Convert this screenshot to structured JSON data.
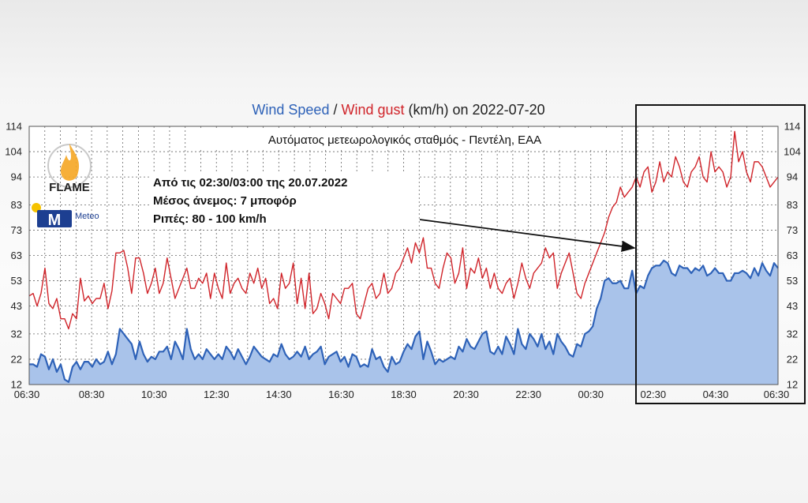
{
  "chart_data": {
    "type": "area",
    "title_parts": [
      {
        "text": "Wind Speed",
        "color": "#2e62b8"
      },
      {
        "text": " / ",
        "color": "#222222"
      },
      {
        "text": "Wind gust",
        "color": "#d0242a"
      },
      {
        "text": " (km/h) on 2022-07-20",
        "color": "#222222"
      }
    ],
    "subtitle": "Αυτόματος μετεωρολογικός σταθμός - Πεντέλη, ΕΑΑ",
    "x_ticks": [
      "06:30",
      "08:30",
      "10:30",
      "12:30",
      "14:30",
      "16:30",
      "18:30",
      "20:30",
      "22:30",
      "00:30",
      "02:30",
      "04:30",
      "06:30"
    ],
    "y_ticks": [
      12,
      22,
      32,
      43,
      53,
      63,
      73,
      83,
      94,
      104,
      114
    ],
    "ylim": [
      12,
      114
    ],
    "grid": true,
    "series": [
      {
        "style": "area",
        "color": "#2e62b8",
        "fill": "#a9c3ea",
        "values": [
          20,
          20,
          19,
          24,
          23,
          18,
          22,
          17,
          20,
          14,
          13,
          19,
          21,
          18,
          21,
          21,
          19,
          22,
          20,
          21,
          25,
          20,
          24,
          34,
          32,
          30,
          28,
          22,
          29,
          24,
          21,
          23,
          22,
          25,
          25,
          27,
          22,
          29,
          26,
          22,
          34,
          26,
          22,
          24,
          22,
          26,
          24,
          22,
          24,
          22,
          27,
          25,
          22,
          26,
          23,
          20,
          23,
          27,
          25,
          23,
          22,
          21,
          24,
          23,
          28,
          24,
          22,
          23,
          25,
          23,
          27,
          22,
          24,
          25,
          27,
          20,
          23,
          24,
          25,
          21,
          23,
          19,
          24,
          23,
          19,
          20,
          19,
          26,
          22,
          23,
          19,
          17,
          23,
          20,
          21,
          25,
          28,
          26,
          31,
          33,
          22,
          29,
          25,
          20,
          22,
          21,
          22,
          23,
          22,
          27,
          25,
          30,
          27,
          26,
          29,
          32,
          33,
          25,
          24,
          27,
          24,
          31,
          28,
          24,
          34,
          28,
          26,
          32,
          30,
          27,
          32,
          26,
          29,
          24,
          32,
          29,
          27,
          24,
          23,
          28,
          27,
          32,
          33,
          35,
          42,
          46,
          53,
          54,
          52,
          52,
          53,
          50,
          50,
          57,
          48,
          51,
          50,
          55,
          58,
          59,
          59,
          61,
          60,
          56,
          55,
          59,
          58,
          58,
          56,
          58,
          57,
          59,
          55,
          56,
          58,
          56,
          56,
          53,
          53,
          56,
          56,
          57,
          56,
          54,
          58,
          55,
          60,
          57,
          55,
          60,
          58
        ]
      },
      {
        "style": "line",
        "color": "#d0242a",
        "values": [
          47,
          48,
          43,
          48,
          58,
          44,
          42,
          46,
          38,
          38,
          34,
          40,
          38,
          54,
          45,
          47,
          44,
          46,
          46,
          52,
          42,
          49,
          64,
          64,
          65,
          58,
          48,
          62,
          62,
          56,
          48,
          52,
          58,
          48,
          52,
          62,
          54,
          46,
          50,
          54,
          58,
          50,
          50,
          54,
          52,
          56,
          46,
          56,
          50,
          46,
          60,
          48,
          52,
          54,
          50,
          48,
          56,
          52,
          58,
          50,
          54,
          44,
          46,
          42,
          56,
          50,
          52,
          60,
          44,
          54,
          42,
          56,
          40,
          42,
          48,
          44,
          38,
          48,
          46,
          44,
          50,
          50,
          52,
          40,
          38,
          44,
          50,
          52,
          46,
          48,
          56,
          48,
          50,
          56,
          58,
          62,
          66,
          60,
          68,
          64,
          70,
          58,
          58,
          52,
          50,
          58,
          64,
          62,
          52,
          56,
          66,
          50,
          58,
          56,
          62,
          54,
          58,
          50,
          56,
          50,
          48,
          52,
          54,
          46,
          52,
          60,
          54,
          50,
          56,
          58,
          60,
          66,
          62,
          64,
          50,
          56,
          60,
          64,
          56,
          48,
          46,
          52,
          56,
          60,
          64,
          68,
          72,
          78,
          82,
          84,
          90,
          86,
          88,
          90,
          94,
          90,
          96,
          98,
          88,
          92,
          100,
          92,
          96,
          94,
          102,
          98,
          92,
          90,
          96,
          98,
          102,
          94,
          92,
          104,
          96,
          98,
          96,
          90,
          94,
          112,
          100,
          104,
          96,
          92,
          100,
          100,
          98,
          94,
          90,
          92,
          94
        ]
      }
    ],
    "annotation": {
      "lines": [
        "Από τις 02:30/03:00 της 20.07.2022",
        "Μέσος άνεμος: 7 μποφόρ",
        "Ριπές: 80 - 100 km/h"
      ]
    },
    "highlight_range": [
      "02:30",
      "06:30"
    ],
    "legend": "none"
  },
  "logos": {
    "flame": {
      "text": "FLAME",
      "color": "#f0a020"
    },
    "meteo": {
      "text": "Meteo",
      "color": "#1d3f91",
      "accent": "#f5c200"
    }
  }
}
